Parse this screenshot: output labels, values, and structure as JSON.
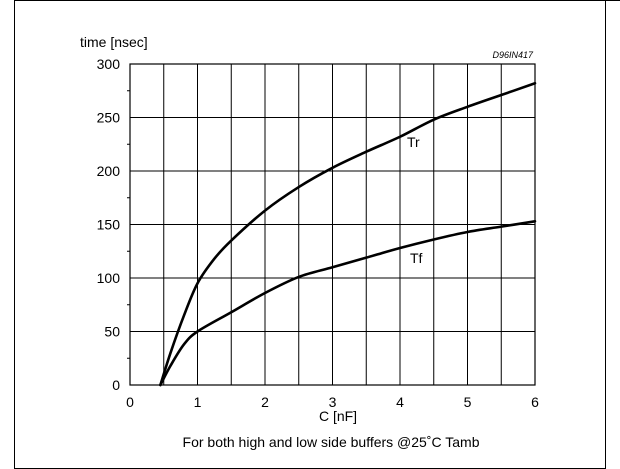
{
  "chart_data": {
    "type": "line",
    "ylabel": "time [nsec]",
    "xlabel": "C [nF]",
    "code": "D96IN417",
    "caption": "For both high and low side buffers @25˚C Tamb",
    "xlim": [
      0,
      6
    ],
    "ylim": [
      0,
      300
    ],
    "x_ticks": [
      0,
      1,
      2,
      3,
      4,
      5,
      6
    ],
    "y_ticks": [
      0,
      50,
      100,
      150,
      200,
      250,
      300
    ],
    "grid": true,
    "series": [
      {
        "name": "Tr",
        "points": [
          [
            0.45,
            0
          ],
          [
            0.6,
            30
          ],
          [
            0.8,
            65
          ],
          [
            1.0,
            95
          ],
          [
            1.25,
            118
          ],
          [
            1.5,
            135
          ],
          [
            2.0,
            163
          ],
          [
            2.5,
            185
          ],
          [
            3.0,
            203
          ],
          [
            3.5,
            218
          ],
          [
            4.0,
            232
          ],
          [
            4.5,
            248
          ],
          [
            5.0,
            260
          ],
          [
            5.5,
            271
          ],
          [
            6.0,
            282
          ]
        ]
      },
      {
        "name": "Tf",
        "points": [
          [
            0.45,
            0
          ],
          [
            0.6,
            18
          ],
          [
            0.8,
            38
          ],
          [
            1.0,
            50
          ],
          [
            1.5,
            68
          ],
          [
            2.0,
            86
          ],
          [
            2.5,
            101
          ],
          [
            3.0,
            110
          ],
          [
            3.5,
            119
          ],
          [
            4.0,
            128
          ],
          [
            4.5,
            136
          ],
          [
            5.0,
            143
          ],
          [
            5.5,
            148
          ],
          [
            6.0,
            153
          ]
        ]
      }
    ]
  }
}
